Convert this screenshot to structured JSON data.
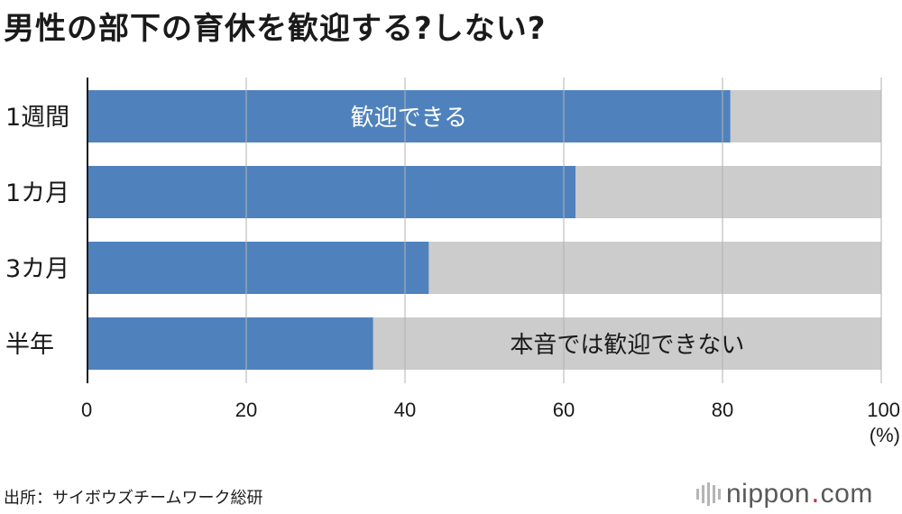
{
  "title": "男性の部下の育休を歓迎する?しない?",
  "source": "出所：サイボウズチームワーク総研",
  "logo": {
    "name": "nippon",
    "dot": ".",
    "suffix": "com"
  },
  "colors": {
    "welcome": "#4f82bd",
    "not_welcome": "#cccccc",
    "gridline": "#b3b3b3"
  },
  "chart_data": {
    "type": "bar",
    "orientation": "horizontal",
    "stacked": true,
    "categories": [
      "1週間",
      "1カ月",
      "3カ月",
      "半年"
    ],
    "series": [
      {
        "name": "歓迎できる",
        "values": [
          81,
          61.5,
          43,
          36
        ]
      },
      {
        "name": "本音では歓迎できない",
        "values": [
          19,
          38.5,
          57,
          64
        ]
      }
    ],
    "xlim": [
      0,
      100
    ],
    "xticks": [
      0,
      20,
      40,
      60,
      80,
      100
    ],
    "xlabel": "(%)",
    "grid": true,
    "legend": "labels inside bars"
  }
}
